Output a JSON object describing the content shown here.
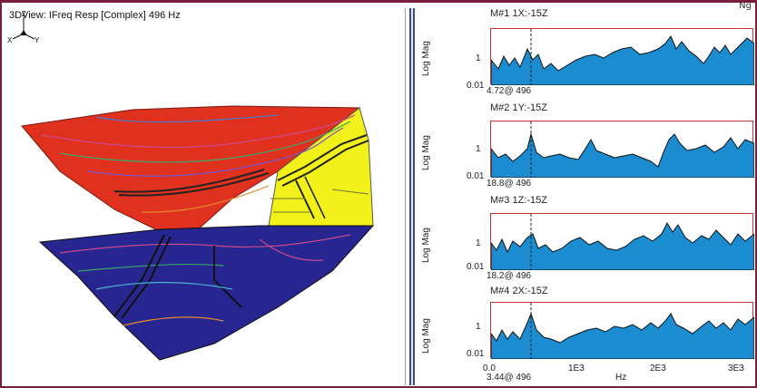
{
  "corner_label": "Ng",
  "view3d": {
    "title": "3DView: IFreq Resp [Complex] 496 Hz",
    "triad": {
      "z": "Z",
      "x": "X",
      "y": "Y"
    },
    "colors": {
      "top_surface": "#e0301e",
      "side_surface": "#f2f21a",
      "bottom_surface": "#27258f"
    }
  },
  "traces": {
    "ylabel": "Log Mag",
    "yticks": [
      "1",
      "0.01"
    ],
    "items": [
      {
        "title": "M#1 1X:-15Z",
        "readout": "4.72@ 496"
      },
      {
        "title": "M#2 1Y:-15Z",
        "readout": "18.8@ 496"
      },
      {
        "title": "M#3 1Z:-15Z",
        "readout": "18.2@ 496"
      },
      {
        "title": "M#4 2X:-15Z",
        "readout": "3.44@ 496"
      }
    ],
    "xticks": [
      "0.0",
      "1E3",
      "2E3",
      "3E3"
    ],
    "xunit": "Hz",
    "fill_color": "#1a8ccf",
    "border_color": "#cc3333"
  }
}
